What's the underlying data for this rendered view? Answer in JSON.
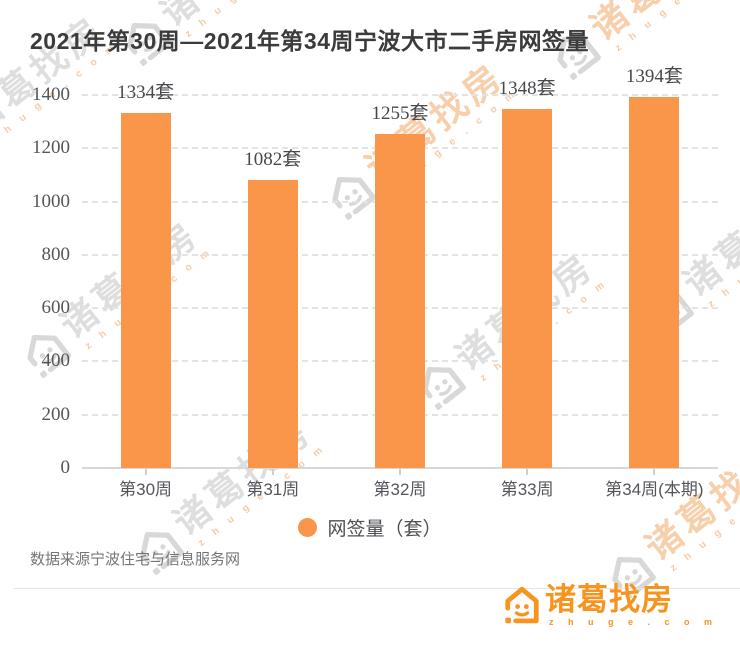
{
  "title": "2021年第30周—2021年第34周宁波大市二手房网签量",
  "chart_data": {
    "type": "bar",
    "title": "2021年第30周—2021年第34周宁波大市二手房网签量",
    "categories": [
      "第30周",
      "第31周",
      "第32周",
      "第33周",
      "第34周(本期)"
    ],
    "values": [
      1334,
      1082,
      1255,
      1348,
      1394
    ],
    "unit": "套",
    "series_name": "网签量（套）",
    "xlabel": "",
    "ylabel": "",
    "ylim": [
      0,
      1400
    ],
    "yticks": [
      0,
      200,
      400,
      600,
      800,
      1000,
      1200,
      1400
    ],
    "grid": "horizontal-dashed",
    "legend_position": "bottom-center",
    "bar_color": "#F9964A"
  },
  "legend": {
    "label": "网签量（套）",
    "dot_color": "#F9964A"
  },
  "footer": {
    "source": "数据来源宁波住宅与信息服务网"
  },
  "brand": {
    "name": "诸葛找房",
    "domain_display": "z h u g e . c o m",
    "color": "#F7941E"
  },
  "watermark": {
    "text": "诸葛找房",
    "latin": "z h u g e . c o m"
  }
}
